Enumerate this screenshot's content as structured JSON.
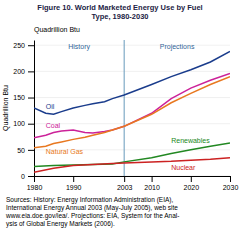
{
  "chart_data": {
    "type": "line",
    "title": [
      "Figure 10.  World Marketed Energy Use by Fuel",
      "Type, 1980-2030"
    ],
    "y_label": "Quadrillion Btu",
    "xlim": [
      1980,
      2030
    ],
    "xticks": [
      1980,
      1990,
      2003,
      2010,
      2020,
      2030
    ],
    "ylim": [
      0,
      260
    ],
    "yticks": [
      0,
      50,
      100,
      150,
      200,
      250
    ],
    "grid": true,
    "divider_x": 2003,
    "annotations": [
      "History",
      "Projections"
    ],
    "caption": [
      "Sources: History: Energy Information Administration (EIA),",
      "International Energy Annual 2003 (May-July 2005), web site",
      "www.eia.doe.gov/iea/. Projections: EIA, System for the Anal-",
      "ysis of Global Energy Markets (2006)."
    ],
    "series": [
      {
        "name": "Oil",
        "color": "#1a3c8c",
        "x": [
          1980,
          1983,
          1985,
          1987,
          1990,
          1993,
          1995,
          1998,
          2000,
          2003,
          2010,
          2015,
          2020,
          2025,
          2030
        ],
        "values": [
          130,
          120,
          118,
          123,
          130,
          135,
          138,
          142,
          148,
          155,
          175,
          190,
          203,
          218,
          238
        ]
      },
      {
        "name": "Coal",
        "color": "#cc2299",
        "x": [
          1980,
          1983,
          1985,
          1987,
          1990,
          1993,
          1995,
          1998,
          2000,
          2003,
          2010,
          2015,
          2020,
          2025,
          2030
        ],
        "values": [
          73,
          78,
          83,
          86,
          88,
          83,
          82,
          85,
          88,
          95,
          120,
          148,
          168,
          183,
          196
        ]
      },
      {
        "name": "Natural Gas",
        "color": "#e87820",
        "x": [
          1980,
          1983,
          1985,
          1987,
          1990,
          1993,
          1995,
          1998,
          2000,
          2003,
          2010,
          2015,
          2020,
          2025,
          2030
        ],
        "values": [
          54,
          57,
          62,
          65,
          70,
          74,
          78,
          83,
          88,
          95,
          118,
          140,
          158,
          175,
          190
        ]
      },
      {
        "name": "Renewables",
        "color": "#228822",
        "x": [
          1980,
          1985,
          1990,
          1995,
          2000,
          2003,
          2010,
          2015,
          2020,
          2025,
          2030
        ],
        "values": [
          18,
          20,
          21,
          22,
          23,
          27,
          35,
          43,
          50,
          57,
          63
        ]
      },
      {
        "name": "Nuclear",
        "color": "#cc2222",
        "x": [
          1980,
          1985,
          1990,
          1995,
          2000,
          2003,
          2010,
          2015,
          2020,
          2025,
          2030
        ],
        "values": [
          7,
          15,
          20,
          22,
          24,
          25,
          27,
          28,
          30,
          32,
          35
        ]
      }
    ]
  }
}
